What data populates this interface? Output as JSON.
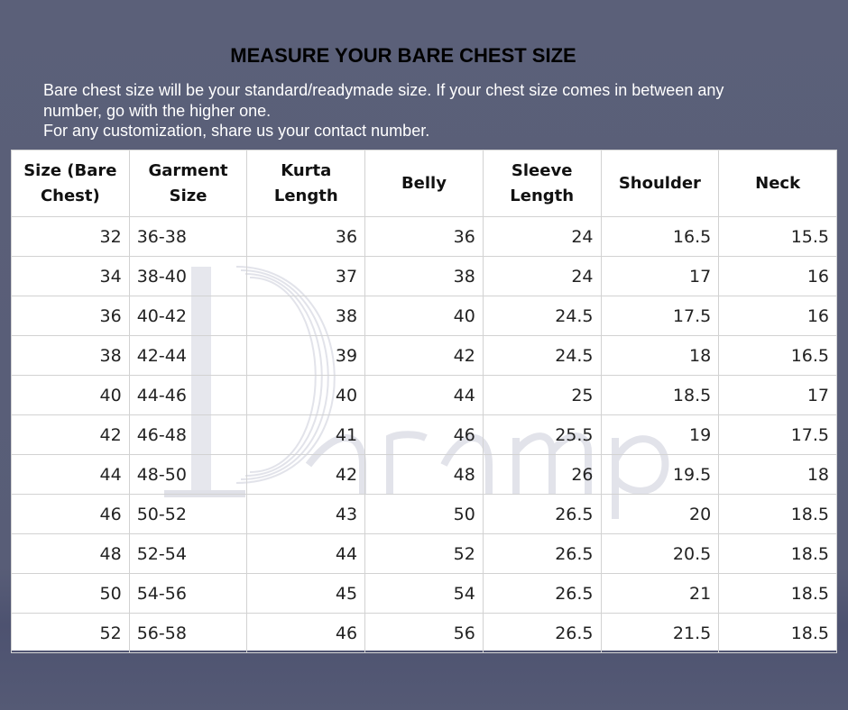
{
  "title": "MEASURE YOUR BARE CHEST SIZE",
  "description": [
    "Bare chest size will be your standard/readymade size. If your chest size comes in between any",
    "number, go with the higher one.",
    "For any customization, share us your contact number."
  ],
  "watermark_logo": "Paramphera",
  "table": {
    "headers": [
      [
        "Size (Bare",
        "Chest)"
      ],
      [
        "Garment",
        "Size"
      ],
      [
        "Kurta",
        "Length"
      ],
      [
        "Belly"
      ],
      [
        "Sleeve",
        "Length"
      ],
      [
        "Shoulder"
      ],
      [
        "Neck"
      ]
    ],
    "rows": [
      [
        "32",
        "36-38",
        "36",
        "36",
        "24",
        "16.5",
        "15.5"
      ],
      [
        "34",
        "38-40",
        "37",
        "38",
        "24",
        "17",
        "16"
      ],
      [
        "36",
        "40-42",
        "38",
        "40",
        "24.5",
        "17.5",
        "16"
      ],
      [
        "38",
        "42-44",
        "39",
        "42",
        "24.5",
        "18",
        "16.5"
      ],
      [
        "40",
        "44-46",
        "40",
        "44",
        "25",
        "18.5",
        "17"
      ],
      [
        "42",
        "46-48",
        "41",
        "46",
        "25.5",
        "19",
        "17.5"
      ],
      [
        "44",
        "48-50",
        "42",
        "48",
        "26",
        "19.5",
        "18"
      ],
      [
        "46",
        "50-52",
        "43",
        "50",
        "26.5",
        "20",
        "18.5"
      ],
      [
        "48",
        "52-54",
        "44",
        "52",
        "26.5",
        "20.5",
        "18.5"
      ],
      [
        "50",
        "54-56",
        "45",
        "54",
        "26.5",
        "21",
        "18.5"
      ],
      [
        "52",
        "56-58",
        "46",
        "56",
        "26.5",
        "21.5",
        "18.5"
      ]
    ]
  }
}
